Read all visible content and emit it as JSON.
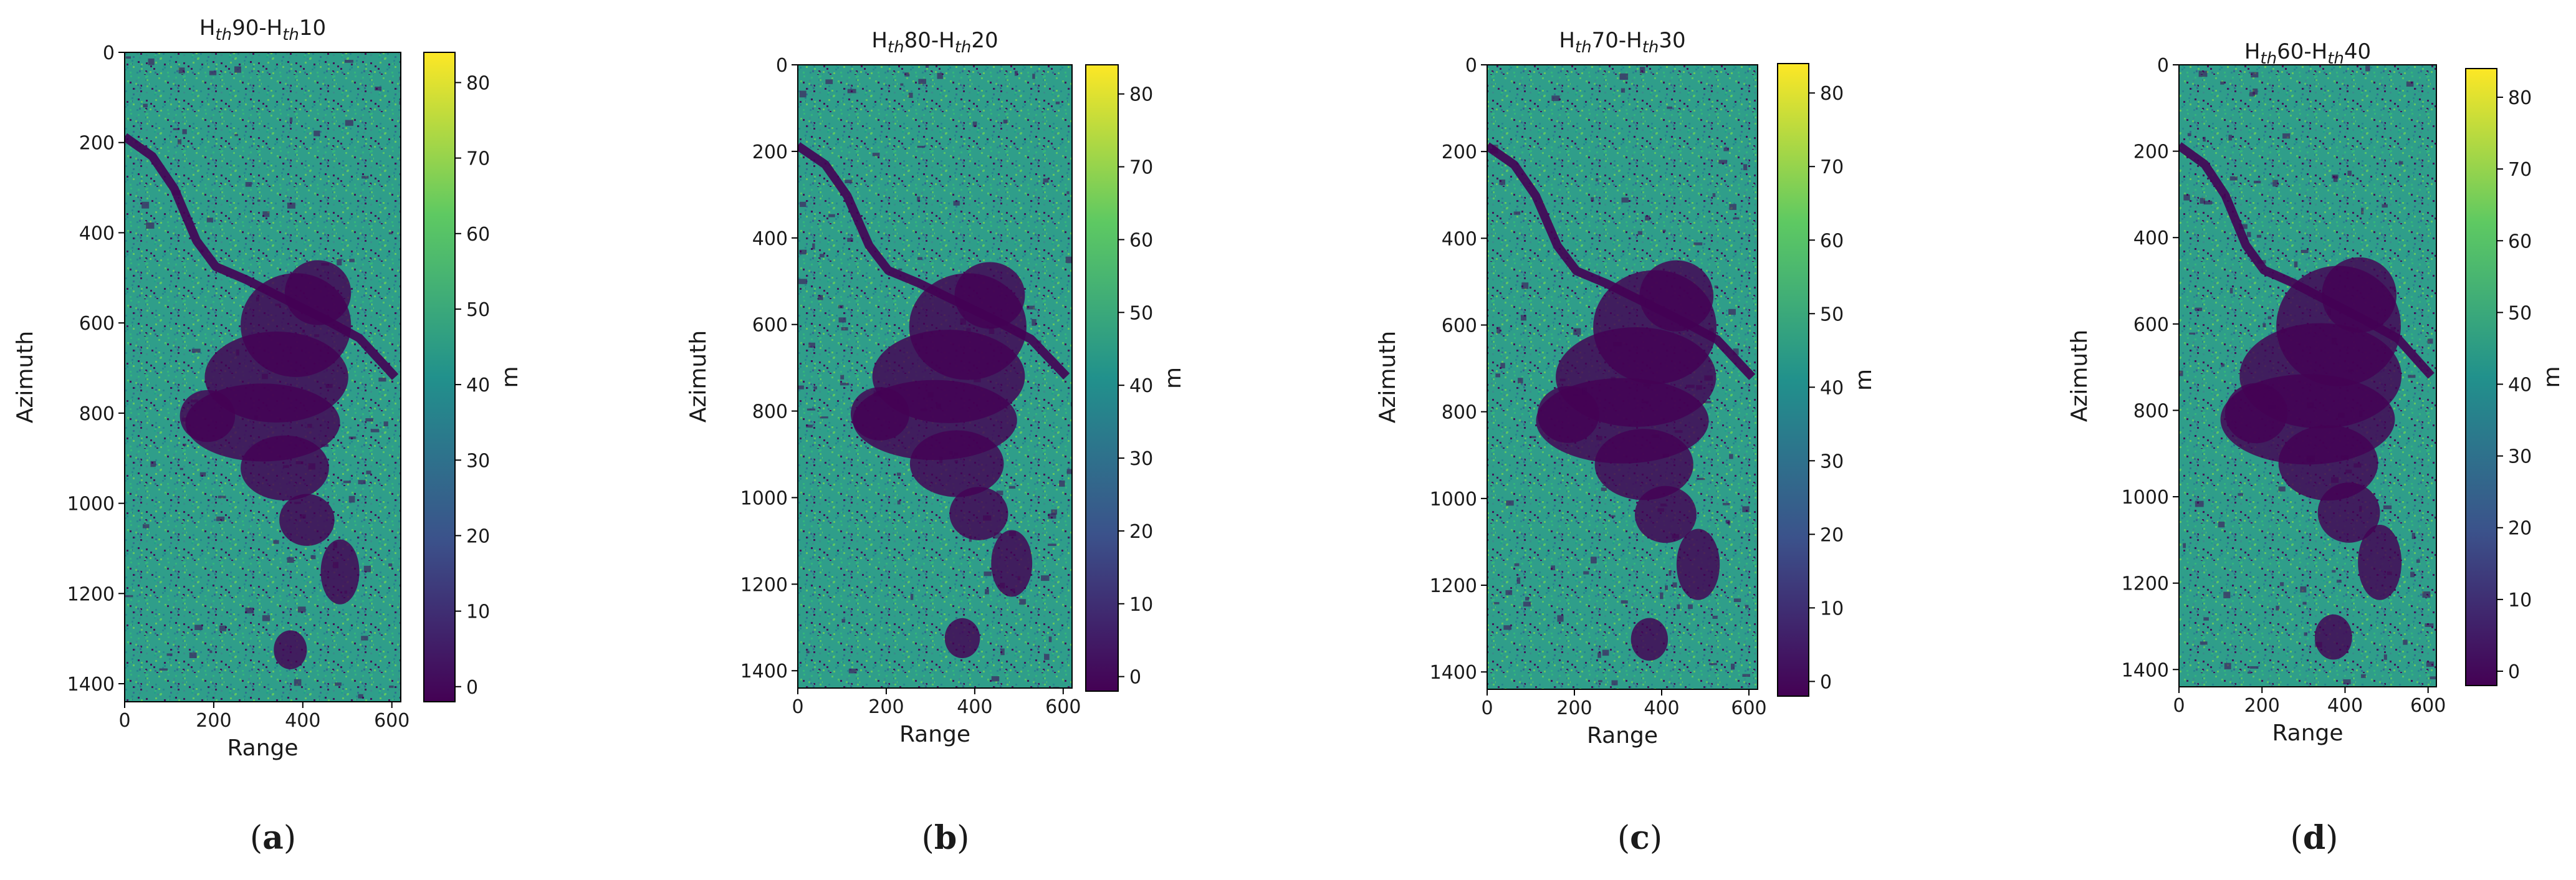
{
  "figure": {
    "colormap": "viridis",
    "colors": [
      "#440154",
      "#3b528b",
      "#21918c",
      "#5ec962",
      "#fde725"
    ]
  },
  "chart_data": [
    {
      "type": "heatmap",
      "title_main": "H",
      "title_sub1": "th",
      "title_num1": "90-H",
      "title_sub2": "th",
      "title_num2": "10",
      "title_text": "Hth90-Hth10",
      "xlabel": "Range",
      "ylabel": "Azimuth",
      "xlim": [
        0,
        620
      ],
      "ylim": [
        1440,
        0
      ],
      "xticks": [
        0,
        200,
        400,
        600
      ],
      "yticks": [
        0,
        200,
        400,
        600,
        800,
        1000,
        1200,
        1400
      ],
      "colorbar": {
        "label": "m",
        "range": [
          -2,
          84
        ],
        "ticks": [
          0,
          10,
          20,
          30,
          40,
          50,
          60,
          70,
          80
        ]
      },
      "caption_letter": "a",
      "caption_open": "(",
      "caption_close": ")"
    },
    {
      "type": "heatmap",
      "title_main": "H",
      "title_sub1": "th",
      "title_num1": "80-H",
      "title_sub2": "th",
      "title_num2": "20",
      "title_text": "Hth80-Hth20",
      "xlabel": "Range",
      "ylabel": "Azimuth",
      "xlim": [
        0,
        620
      ],
      "ylim": [
        1440,
        0
      ],
      "xticks": [
        0,
        200,
        400,
        600
      ],
      "yticks": [
        0,
        200,
        400,
        600,
        800,
        1000,
        1200,
        1400
      ],
      "colorbar": {
        "label": "m",
        "range": [
          -2,
          84
        ],
        "ticks": [
          0,
          10,
          20,
          30,
          40,
          50,
          60,
          70,
          80
        ]
      },
      "caption_letter": "b",
      "caption_open": "(",
      "caption_close": ")"
    },
    {
      "type": "heatmap",
      "title_main": "H",
      "title_sub1": "th",
      "title_num1": "70-H",
      "title_sub2": "th",
      "title_num2": "30",
      "title_text": "Hth70-Hth30",
      "xlabel": "Range",
      "ylabel": "Azimuth",
      "xlim": [
        0,
        620
      ],
      "ylim": [
        1440,
        0
      ],
      "xticks": [
        0,
        200,
        400,
        600
      ],
      "yticks": [
        0,
        200,
        400,
        600,
        800,
        1000,
        1200,
        1400
      ],
      "colorbar": {
        "label": "m",
        "range": [
          -2,
          84
        ],
        "ticks": [
          0,
          10,
          20,
          30,
          40,
          50,
          60,
          70,
          80
        ]
      },
      "caption_letter": "c",
      "caption_open": "(",
      "caption_close": ")"
    },
    {
      "type": "heatmap",
      "title_main": "H",
      "title_sub1": "th",
      "title_num1": "60-H",
      "title_sub2": "th",
      "title_num2": "40",
      "title_text": "Hth60-Hth40",
      "xlabel": "Range",
      "ylabel": "Azimuth",
      "xlim": [
        0,
        620
      ],
      "ylim": [
        1440,
        0
      ],
      "xticks": [
        0,
        200,
        400,
        600
      ],
      "yticks": [
        0,
        200,
        400,
        600,
        800,
        1000,
        1200,
        1400
      ],
      "colorbar": {
        "label": "m",
        "range": [
          -2,
          84
        ],
        "ticks": [
          0,
          10,
          20,
          30,
          40,
          50,
          60,
          70,
          80
        ]
      },
      "caption_letter": "d",
      "caption_open": "(",
      "caption_close": ")"
    }
  ]
}
